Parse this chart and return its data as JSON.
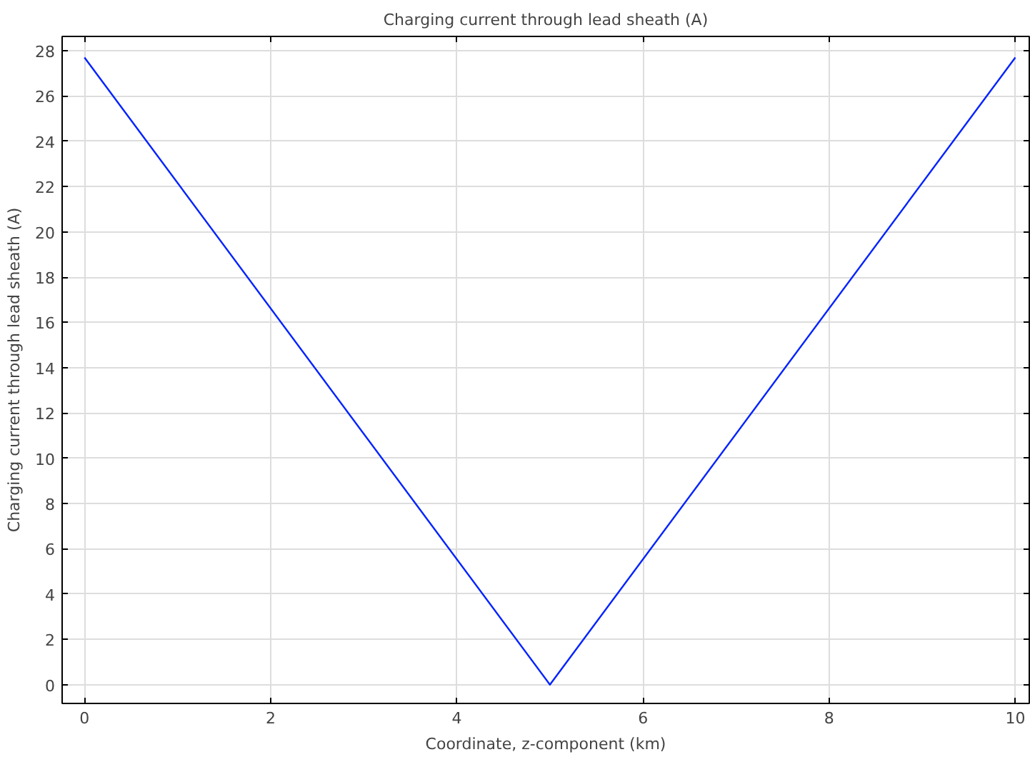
{
  "chart_data": {
    "type": "line",
    "title": "Charging current through lead sheath (A)",
    "xlabel": "Coordinate, z-component (km)",
    "ylabel": "Charging current through lead sheath (A)",
    "x": [
      0,
      5,
      10
    ],
    "series": [
      {
        "color": "#0022ff",
        "values": [
          27.7,
          0,
          27.7
        ]
      }
    ],
    "xlim": [
      -0.24,
      10.15
    ],
    "ylim": [
      -0.83,
      28.63
    ],
    "xticks": [
      0,
      2,
      4,
      6,
      8,
      10
    ],
    "yticks": [
      0,
      2,
      4,
      6,
      8,
      10,
      12,
      14,
      16,
      18,
      20,
      22,
      24,
      26,
      28
    ],
    "grid": true,
    "line_style": "solid"
  }
}
